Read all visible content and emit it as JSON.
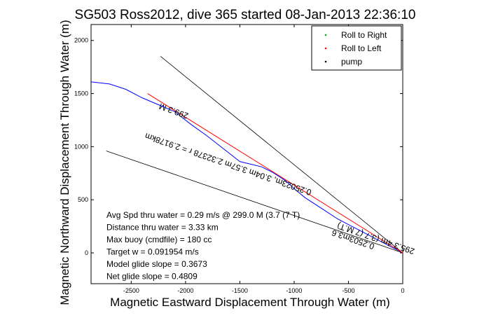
{
  "chart_data": {
    "type": "line",
    "title": "SG503 Ross2012, dive 365 started 08-Jan-2013 22:36:10",
    "xlabel": "Magnetic Eastward Displacement Through Water (m)",
    "ylabel": "Magnetic Northward Displacement Through Water (m)",
    "xlim": [
      -2870,
      0
    ],
    "ylim": [
      -290,
      2150
    ],
    "xticks": [
      -2500,
      -2000,
      -1500,
      -1000,
      -500,
      0
    ],
    "yticks": [
      0,
      500,
      1000,
      1500,
      2000
    ],
    "grid": false,
    "legend_placement": "top-right",
    "legend": [
      {
        "label": "Roll to Right",
        "marker": ".",
        "color": "#00b000"
      },
      {
        "label": "Roll to Left",
        "marker": ".",
        "color": "#ff0000"
      },
      {
        "label": "pump",
        "marker": ".",
        "color": "#000000"
      }
    ],
    "series": [
      {
        "color": "#0000ff",
        "x": [
          0,
          -150,
          -300,
          -450,
          -600,
          -750,
          -900,
          -1000,
          -1080,
          -1200,
          -1300,
          -1400,
          -1500,
          -1600,
          -1700,
          -1800,
          -1950,
          -2100,
          -2250,
          -2400,
          -2550,
          -2700,
          -2870
        ],
        "y": [
          0,
          80,
          160,
          240,
          320,
          420,
          520,
          605,
          680,
          760,
          810,
          835,
          860,
          940,
          1020,
          1100,
          1210,
          1330,
          1395,
          1460,
          1540,
          1590,
          1610
        ]
      },
      {
        "color": "#ff0000",
        "x": [
          0,
          -2350
        ],
        "y": [
          0,
          1500
        ]
      }
    ],
    "reference_lines": [
      {
        "color": "#000000",
        "x": [
          0,
          -2230
        ],
        "y": [
          0,
          1850
        ]
      },
      {
        "color": "#000000",
        "x": [
          0,
          -2730
        ],
        "y": [
          0,
          960
        ]
      }
    ],
    "annotations": [
      {
        "text": "299.3 M",
        "x": -2100,
        "y": 1360,
        "rotation": 200
      },
      {
        "text": "0.25023m, 3.04m 3.57m 2.32378 r = 2.9178km",
        "x": -1600,
        "y": 860,
        "rotation": 199
      },
      {
        "text": "295.3 4m (3.7 (7 M.T)",
        "x": -240,
        "y": 160,
        "rotation": 199
      },
      {
        "text": "0.2503m3.6",
        "x": -450,
        "y": 150,
        "rotation": 199
      }
    ],
    "stats": [
      "Avg Spd thru water =  0.29 m/s @ 299.0   M (3.7 (7 T)",
      "Distance thru water =  3.33 km",
      "Max buoy (cmdfile) = 180 cc",
      "Target w = 0.091954 m/s",
      "Model glide slope = 0.3673",
      "Net glide slope = 0.4809"
    ]
  }
}
